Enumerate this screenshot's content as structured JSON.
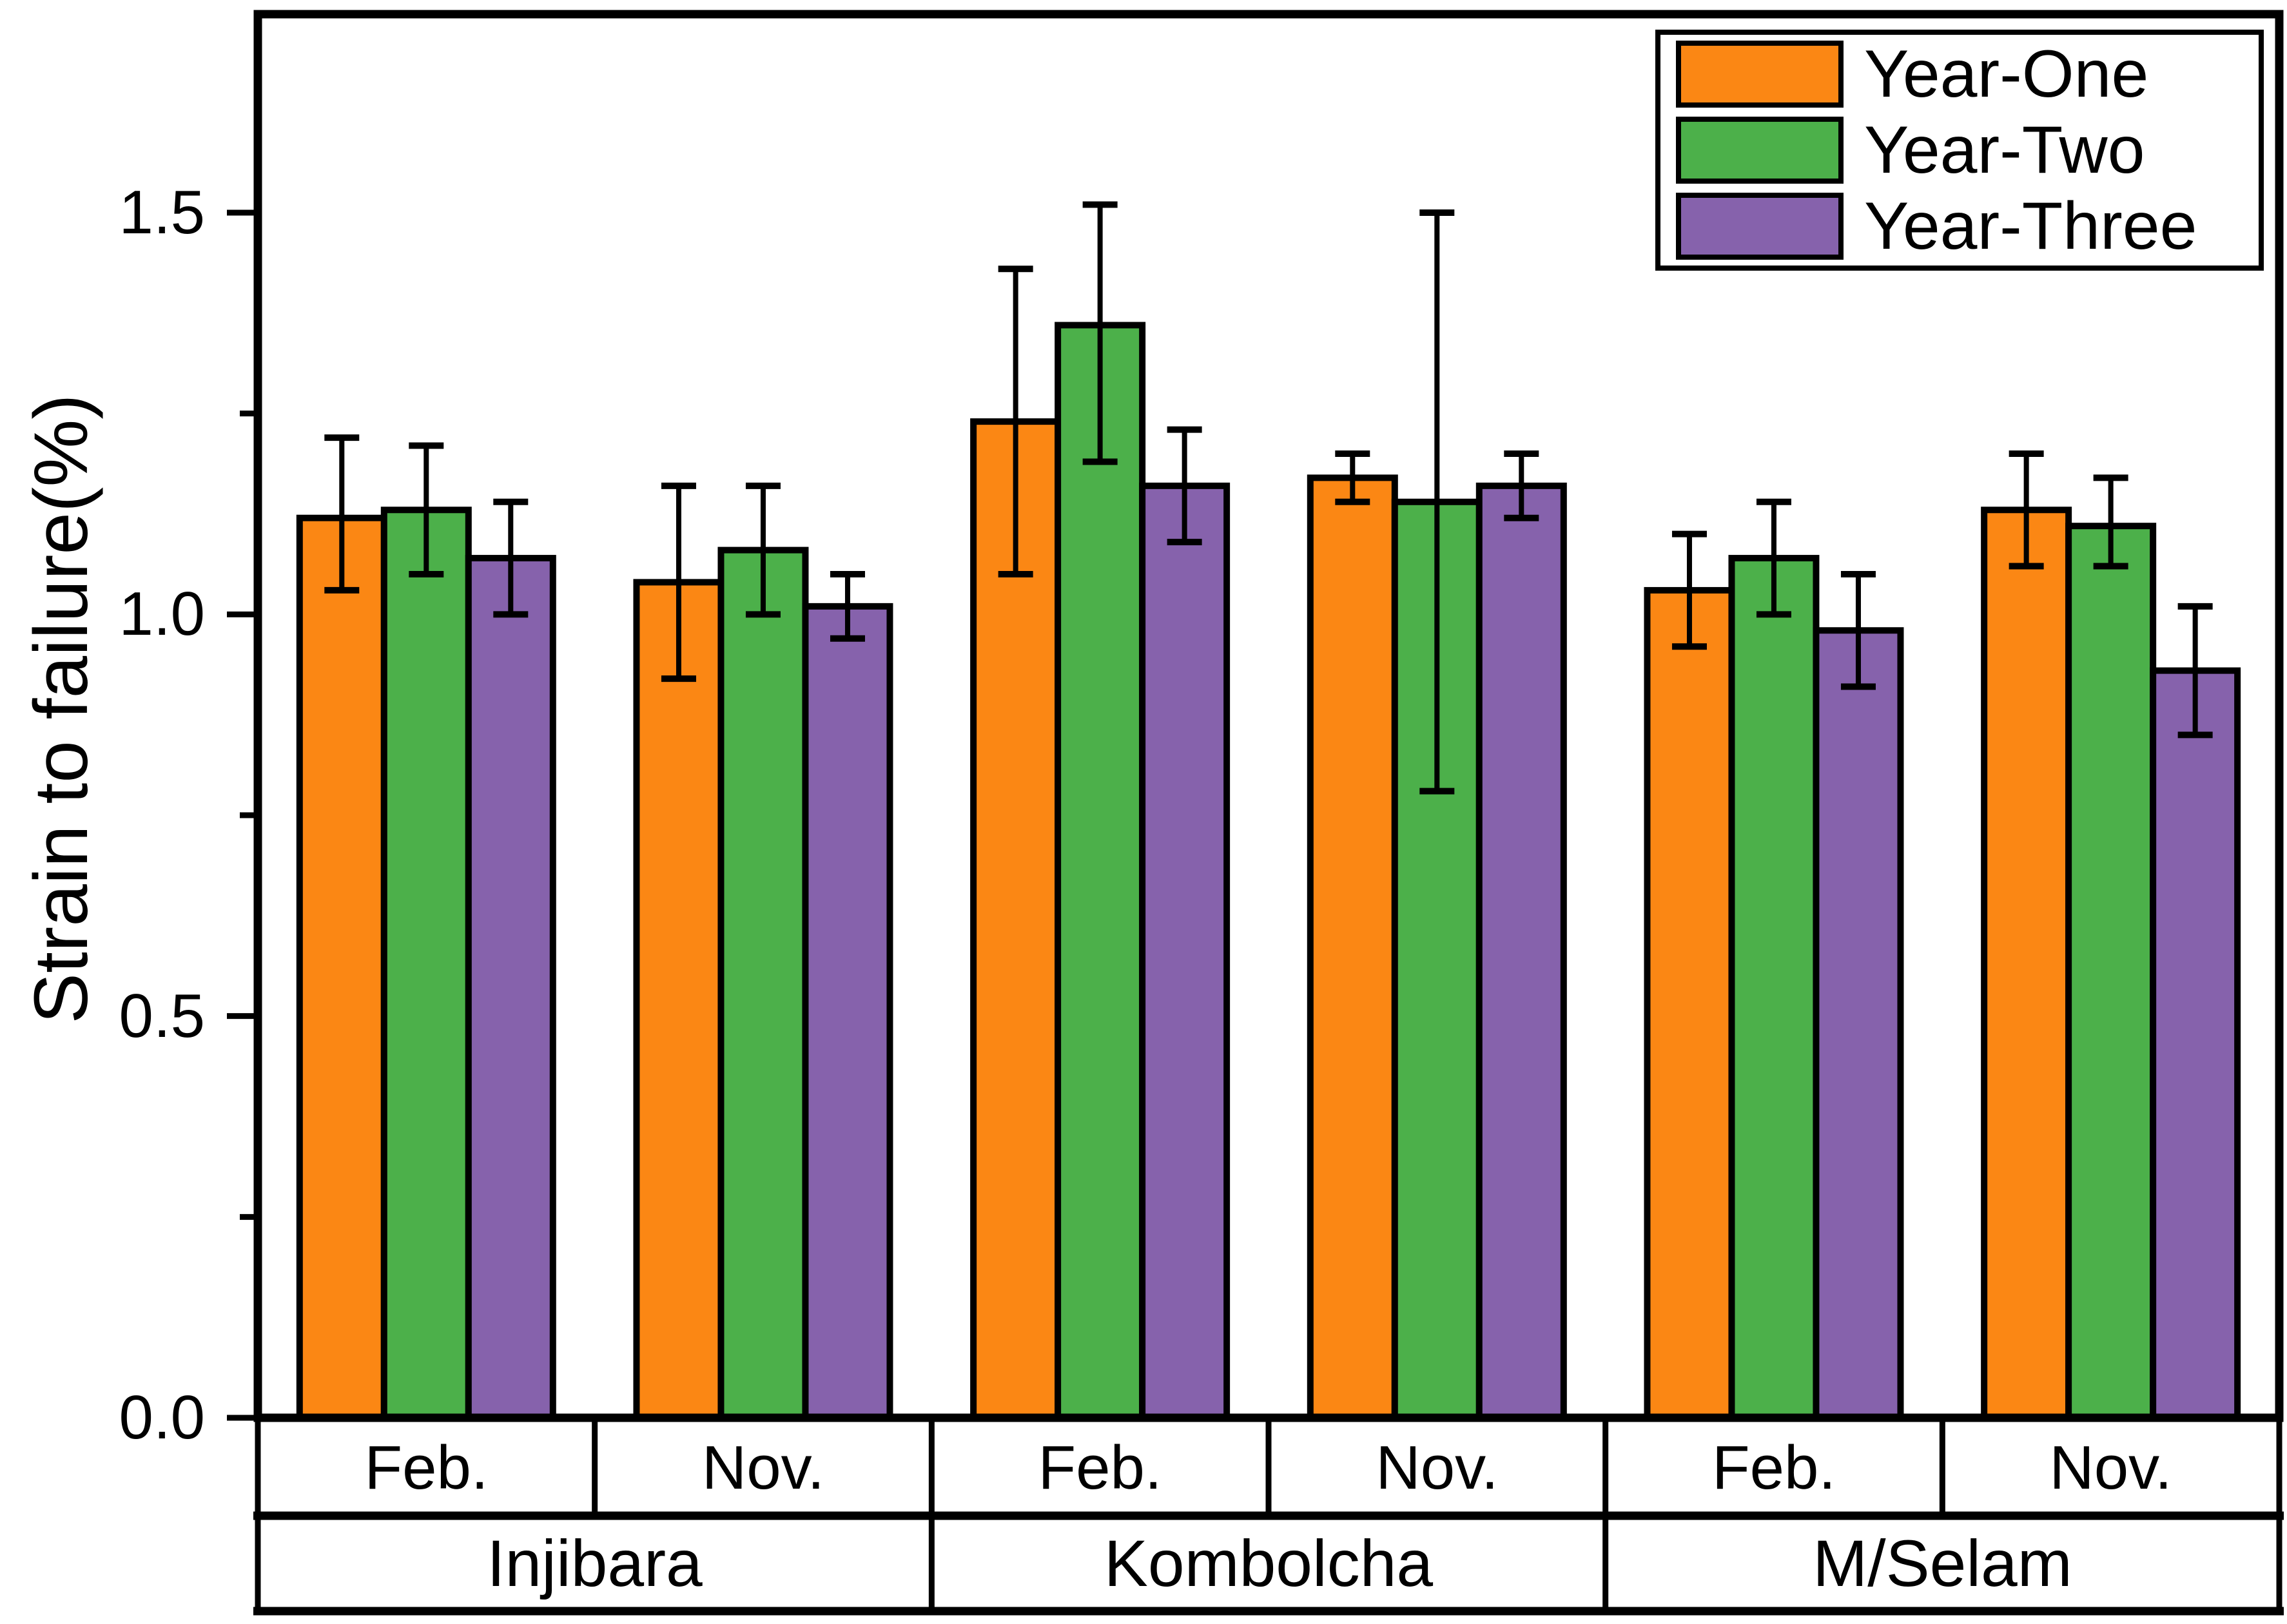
{
  "figure": {
    "background": "#ffffff",
    "axis_color": "#000000"
  },
  "chart_data": {
    "type": "bar",
    "title": "",
    "xlabel": "",
    "ylabel": "Strain to failure(%)",
    "ylim": [
      0,
      1.75
    ],
    "grid": false,
    "legend_position": "top-right",
    "y_major_ticks": [
      0.0,
      0.5,
      1.0,
      1.5
    ],
    "y_tick_labels": [
      "0.0",
      "0.5",
      "1.0",
      "1.5"
    ],
    "y_minor_ticks": [
      0.25,
      0.75,
      1.25
    ],
    "group_labels_top": [
      "Feb.",
      "Nov.",
      "Feb.",
      "Nov.",
      "Feb.",
      "Nov."
    ],
    "group_labels_bottom": [
      "Injibara",
      "Kombolcha",
      "M/Selam"
    ],
    "series": [
      {
        "name": "Year-One",
        "color": "#fb8714",
        "values": [
          1.12,
          1.04,
          1.24,
          1.17,
          1.03,
          1.13
        ],
        "err_low": [
          1.03,
          0.92,
          1.05,
          1.14,
          0.96,
          1.06
        ],
        "err_high": [
          1.22,
          1.16,
          1.43,
          1.2,
          1.1,
          1.2
        ]
      },
      {
        "name": "Year-Two",
        "color": "#4cb04a",
        "values": [
          1.13,
          1.08,
          1.36,
          1.14,
          1.07,
          1.11
        ],
        "err_low": [
          1.05,
          1.0,
          1.19,
          0.78,
          1.0,
          1.06
        ],
        "err_high": [
          1.21,
          1.16,
          1.51,
          1.5,
          1.14,
          1.17
        ]
      },
      {
        "name": "Year-Three",
        "color": "#8662ac",
        "values": [
          1.07,
          1.01,
          1.16,
          1.16,
          0.98,
          0.93
        ],
        "err_low": [
          1.0,
          0.97,
          1.09,
          1.12,
          0.91,
          0.85
        ],
        "err_high": [
          1.14,
          1.05,
          1.23,
          1.2,
          1.05,
          1.01
        ]
      }
    ]
  }
}
